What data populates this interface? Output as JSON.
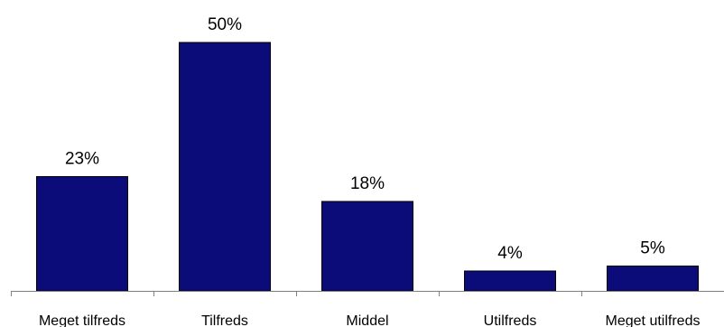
{
  "chart_data": {
    "type": "bar",
    "categories": [
      "Meget tilfreds",
      "Tilfreds",
      "Middel",
      "Utilfreds",
      "Meget utilfreds"
    ],
    "values": [
      23,
      50,
      18,
      4,
      5
    ],
    "value_suffix": "%",
    "data_labels": [
      "23%",
      "50%",
      "18%",
      "4%",
      "5%"
    ],
    "title": "",
    "xlabel": "",
    "ylabel": "",
    "ylim": [
      0,
      50
    ],
    "grid": false,
    "legend": "none",
    "bar_color": "#0b0b7a",
    "bar_edge_color": "#000000"
  }
}
